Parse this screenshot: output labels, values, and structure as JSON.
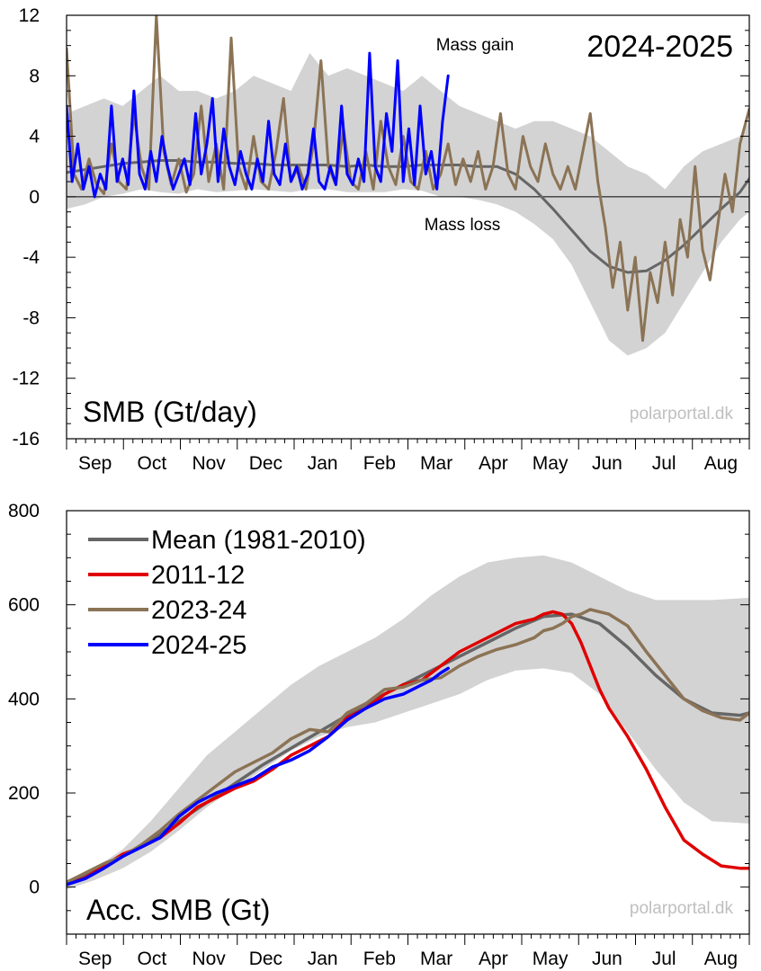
{
  "chart_data": [
    {
      "type": "line",
      "title": "2024-2025",
      "panel_label": "SMB (Gt/day)",
      "watermark": "polarportal.dk",
      "annotations": {
        "gain": "Mass gain",
        "loss": "Mass loss"
      },
      "x_axis_ticks": [
        "Sep",
        "Oct",
        "Nov",
        "Dec",
        "Jan",
        "Feb",
        "Mar",
        "Apr",
        "May",
        "Jun",
        "Jul",
        "Aug"
      ],
      "x_range_days": [
        0,
        365
      ],
      "yticks": [
        12,
        8,
        4,
        0,
        -4,
        -8,
        -12,
        -16
      ],
      "ylim": [
        -16,
        12
      ],
      "zero_line": true,
      "band": {
        "name": "range",
        "color": "#d3d3d3",
        "x": [
          0,
          10,
          20,
          30,
          40,
          50,
          60,
          70,
          80,
          90,
          100,
          110,
          120,
          130,
          140,
          150,
          160,
          170,
          180,
          190,
          200,
          210,
          220,
          230,
          240,
          250,
          260,
          270,
          280,
          290,
          300,
          310,
          320,
          330,
          340,
          350,
          360,
          365
        ],
        "upper": [
          5.5,
          6,
          6.5,
          6,
          7,
          8,
          7,
          7,
          6.5,
          7,
          8,
          7.5,
          7,
          9.5,
          8,
          8.5,
          8,
          7.5,
          7,
          8,
          7,
          6,
          5.5,
          5,
          4.5,
          5,
          5,
          4.5,
          4,
          3,
          2,
          1.5,
          0.5,
          2,
          3,
          3.5,
          4,
          5
        ],
        "lower": [
          -0.8,
          -0.5,
          0,
          0.2,
          0.5,
          0.3,
          0.2,
          0.5,
          0.3,
          0.4,
          0.5,
          0.4,
          0.3,
          0.5,
          0.5,
          0.3,
          0.3,
          0.3,
          0.5,
          0.4,
          0,
          0,
          -0.2,
          -0.5,
          -1,
          -1.8,
          -2.8,
          -4.5,
          -7,
          -9.5,
          -10.5,
          -10,
          -9,
          -7,
          -5,
          -3,
          -1.5,
          -1
        ]
      },
      "series": [
        {
          "name": "Mean (1981-2010)",
          "color": "#666666",
          "x": [
            0,
            10,
            20,
            30,
            40,
            50,
            60,
            70,
            80,
            90,
            100,
            110,
            120,
            130,
            140,
            150,
            160,
            170,
            180,
            190,
            200,
            210,
            220,
            230,
            240,
            250,
            260,
            270,
            280,
            290,
            300,
            310,
            320,
            330,
            340,
            350,
            360,
            365
          ],
          "y": [
            1.6,
            1.8,
            2.0,
            2.2,
            2.3,
            2.4,
            2.4,
            2.3,
            2.3,
            2.2,
            2.2,
            2.1,
            2.1,
            2.1,
            2.1,
            2.0,
            2.1,
            2.0,
            2.0,
            2.1,
            2.1,
            2.1,
            2.0,
            2.0,
            1.5,
            0.5,
            -0.8,
            -2.2,
            -3.6,
            -4.6,
            -5.0,
            -4.9,
            -4.2,
            -3.2,
            -2.0,
            -0.8,
            0.3,
            1.2
          ]
        },
        {
          "name": "2023-24",
          "color": "#8b7355",
          "x": [
            0,
            4,
            8,
            12,
            16,
            20,
            24,
            28,
            32,
            36,
            40,
            44,
            48,
            52,
            56,
            60,
            64,
            68,
            72,
            76,
            80,
            84,
            88,
            92,
            96,
            100,
            104,
            108,
            112,
            116,
            120,
            124,
            128,
            132,
            136,
            140,
            144,
            148,
            152,
            156,
            160,
            164,
            168,
            172,
            176,
            180,
            184,
            188,
            192,
            196,
            200,
            204,
            208,
            212,
            216,
            220,
            224,
            228,
            232,
            236,
            240,
            244,
            248,
            252,
            256,
            260,
            264,
            268,
            272,
            276,
            280,
            284,
            288,
            292,
            296,
            300,
            304,
            308,
            312,
            316,
            320,
            324,
            328,
            332,
            336,
            340,
            344,
            348,
            352,
            356,
            360,
            365
          ],
          "y": [
            9.8,
            1.5,
            0.5,
            2.5,
            0.8,
            0.2,
            3.5,
            1.0,
            0.5,
            5.5,
            2.0,
            0.5,
            12.0,
            3.0,
            0.8,
            2.5,
            0.3,
            1.5,
            6.0,
            1.0,
            3.5,
            0.5,
            10.5,
            2.0,
            0.5,
            4.0,
            1.0,
            0.5,
            3.0,
            6.5,
            1.0,
            2.0,
            0.5,
            3.5,
            9.0,
            2.0,
            0.8,
            4.5,
            1.0,
            0.5,
            3.0,
            0.5,
            5.0,
            2.0,
            0.8,
            4.0,
            1.0,
            0.5,
            3.0,
            0.5,
            1.5,
            3.5,
            0.8,
            2.5,
            1.0,
            3.0,
            0.5,
            2.0,
            5.5,
            1.5,
            0.5,
            4.0,
            2.0,
            1.0,
            3.5,
            1.5,
            0.5,
            2.0,
            0.5,
            3.0,
            5.5,
            1.0,
            -2.0,
            -6.0,
            -3.0,
            -7.5,
            -4.0,
            -9.5,
            -5.0,
            -7.0,
            -3.0,
            -6.5,
            -1.5,
            -4.0,
            2.0,
            -3.5,
            -5.5,
            -2.0,
            1.5,
            -1.0,
            3.5,
            5.8
          ]
        },
        {
          "name": "2024-25",
          "color": "#0000ff",
          "x": [
            0,
            3,
            6,
            9,
            12,
            15,
            18,
            21,
            24,
            27,
            30,
            33,
            36,
            39,
            42,
            45,
            48,
            51,
            54,
            57,
            60,
            63,
            66,
            69,
            72,
            75,
            78,
            81,
            84,
            87,
            90,
            93,
            96,
            99,
            102,
            105,
            108,
            111,
            114,
            117,
            120,
            123,
            126,
            129,
            132,
            135,
            138,
            141,
            144,
            147,
            150,
            153,
            156,
            159,
            162,
            165,
            168,
            171,
            174,
            177,
            180,
            183,
            186,
            189,
            192,
            195,
            198,
            201,
            204
          ],
          "y": [
            6.0,
            1.0,
            3.5,
            0.5,
            2.0,
            0.0,
            1.5,
            0.5,
            6.0,
            1.0,
            2.5,
            0.8,
            7.0,
            1.5,
            0.5,
            3.0,
            1.0,
            4.0,
            2.0,
            0.5,
            1.5,
            2.5,
            0.8,
            5.5,
            1.5,
            3.5,
            6.5,
            1.0,
            4.5,
            2.0,
            0.8,
            3.0,
            1.5,
            0.5,
            2.5,
            1.0,
            5.0,
            1.5,
            0.8,
            3.5,
            1.0,
            2.0,
            0.5,
            1.5,
            4.5,
            1.0,
            0.5,
            2.0,
            0.8,
            6.0,
            1.5,
            0.8,
            2.5,
            1.0,
            9.5,
            2.0,
            1.0,
            5.5,
            3.0,
            9.0,
            1.0,
            4.5,
            0.8,
            6.0,
            1.5,
            3.0,
            0.5,
            5.0,
            8.0
          ]
        }
      ]
    },
    {
      "type": "line",
      "panel_label": "Acc. SMB (Gt)",
      "watermark": "polarportal.dk",
      "x_axis_ticks": [
        "Sep",
        "Oct",
        "Nov",
        "Dec",
        "Jan",
        "Feb",
        "Mar",
        "Apr",
        "May",
        "Jun",
        "Jul",
        "Aug"
      ],
      "x_range_days": [
        0,
        365
      ],
      "yticks": [
        800,
        600,
        400,
        200,
        0
      ],
      "ylim": [
        -100,
        800
      ],
      "legend": {
        "placement": "top-left"
      },
      "band": {
        "name": "range",
        "color": "#d3d3d3",
        "x": [
          0,
          15,
          30,
          45,
          60,
          75,
          90,
          105,
          120,
          135,
          150,
          165,
          180,
          195,
          210,
          225,
          240,
          255,
          270,
          285,
          300,
          315,
          330,
          345,
          365
        ],
        "upper": [
          15,
          40,
          80,
          140,
          210,
          280,
          330,
          380,
          430,
          470,
          500,
          530,
          570,
          620,
          660,
          690,
          700,
          705,
          690,
          660,
          630,
          610,
          610,
          610,
          615
        ],
        "lower": [
          -5,
          15,
          40,
          75,
          120,
          170,
          210,
          250,
          290,
          320,
          340,
          350,
          370,
          390,
          410,
          440,
          460,
          465,
          455,
          410,
          330,
          250,
          180,
          140,
          135
        ]
      },
      "series": [
        {
          "name": "Mean (1981-2010)",
          "color": "#666666",
          "x": [
            0,
            15,
            30,
            45,
            60,
            75,
            90,
            105,
            120,
            135,
            150,
            165,
            180,
            195,
            210,
            225,
            240,
            255,
            270,
            285,
            300,
            315,
            330,
            345,
            360,
            365
          ],
          "y": [
            10,
            35,
            65,
            100,
            140,
            180,
            220,
            260,
            295,
            330,
            365,
            400,
            430,
            460,
            490,
            520,
            550,
            575,
            580,
            560,
            510,
            450,
            400,
            370,
            365,
            370
          ]
        },
        {
          "name": "2011-12",
          "color": "#e00000",
          "x": [
            0,
            10,
            20,
            30,
            40,
            50,
            60,
            70,
            80,
            90,
            100,
            110,
            120,
            130,
            140,
            150,
            160,
            170,
            180,
            190,
            200,
            210,
            220,
            230,
            240,
            250,
            255,
            260,
            265,
            270,
            275,
            280,
            285,
            290,
            300,
            310,
            320,
            330,
            340,
            350,
            360,
            365
          ],
          "y": [
            5,
            20,
            45,
            70,
            85,
            105,
            135,
            170,
            190,
            210,
            225,
            250,
            280,
            300,
            320,
            360,
            380,
            410,
            430,
            440,
            470,
            500,
            520,
            540,
            560,
            570,
            580,
            585,
            580,
            560,
            520,
            470,
            420,
            380,
            320,
            250,
            170,
            100,
            70,
            45,
            40,
            40
          ]
        },
        {
          "name": "2023-24",
          "color": "#8b7355",
          "x": [
            0,
            10,
            20,
            30,
            40,
            50,
            60,
            70,
            80,
            90,
            100,
            110,
            120,
            130,
            140,
            150,
            160,
            170,
            180,
            190,
            200,
            210,
            220,
            230,
            240,
            250,
            255,
            260,
            265,
            270,
            275,
            280,
            290,
            300,
            310,
            320,
            330,
            340,
            350,
            360,
            365
          ],
          "y": [
            10,
            30,
            50,
            65,
            90,
            120,
            155,
            185,
            215,
            245,
            265,
            285,
            315,
            335,
            330,
            370,
            390,
            420,
            425,
            440,
            445,
            470,
            490,
            505,
            515,
            530,
            545,
            550,
            560,
            575,
            580,
            590,
            580,
            555,
            500,
            450,
            400,
            375,
            360,
            355,
            370
          ]
        },
        {
          "name": "2024-25",
          "color": "#0000ff",
          "x": [
            0,
            10,
            20,
            30,
            40,
            50,
            60,
            70,
            80,
            90,
            100,
            110,
            120,
            130,
            140,
            150,
            160,
            170,
            180,
            190,
            195,
            200,
            204
          ],
          "y": [
            5,
            18,
            40,
            65,
            85,
            105,
            150,
            180,
            200,
            215,
            230,
            255,
            270,
            290,
            320,
            355,
            380,
            400,
            410,
            430,
            440,
            455,
            465
          ]
        }
      ]
    }
  ]
}
